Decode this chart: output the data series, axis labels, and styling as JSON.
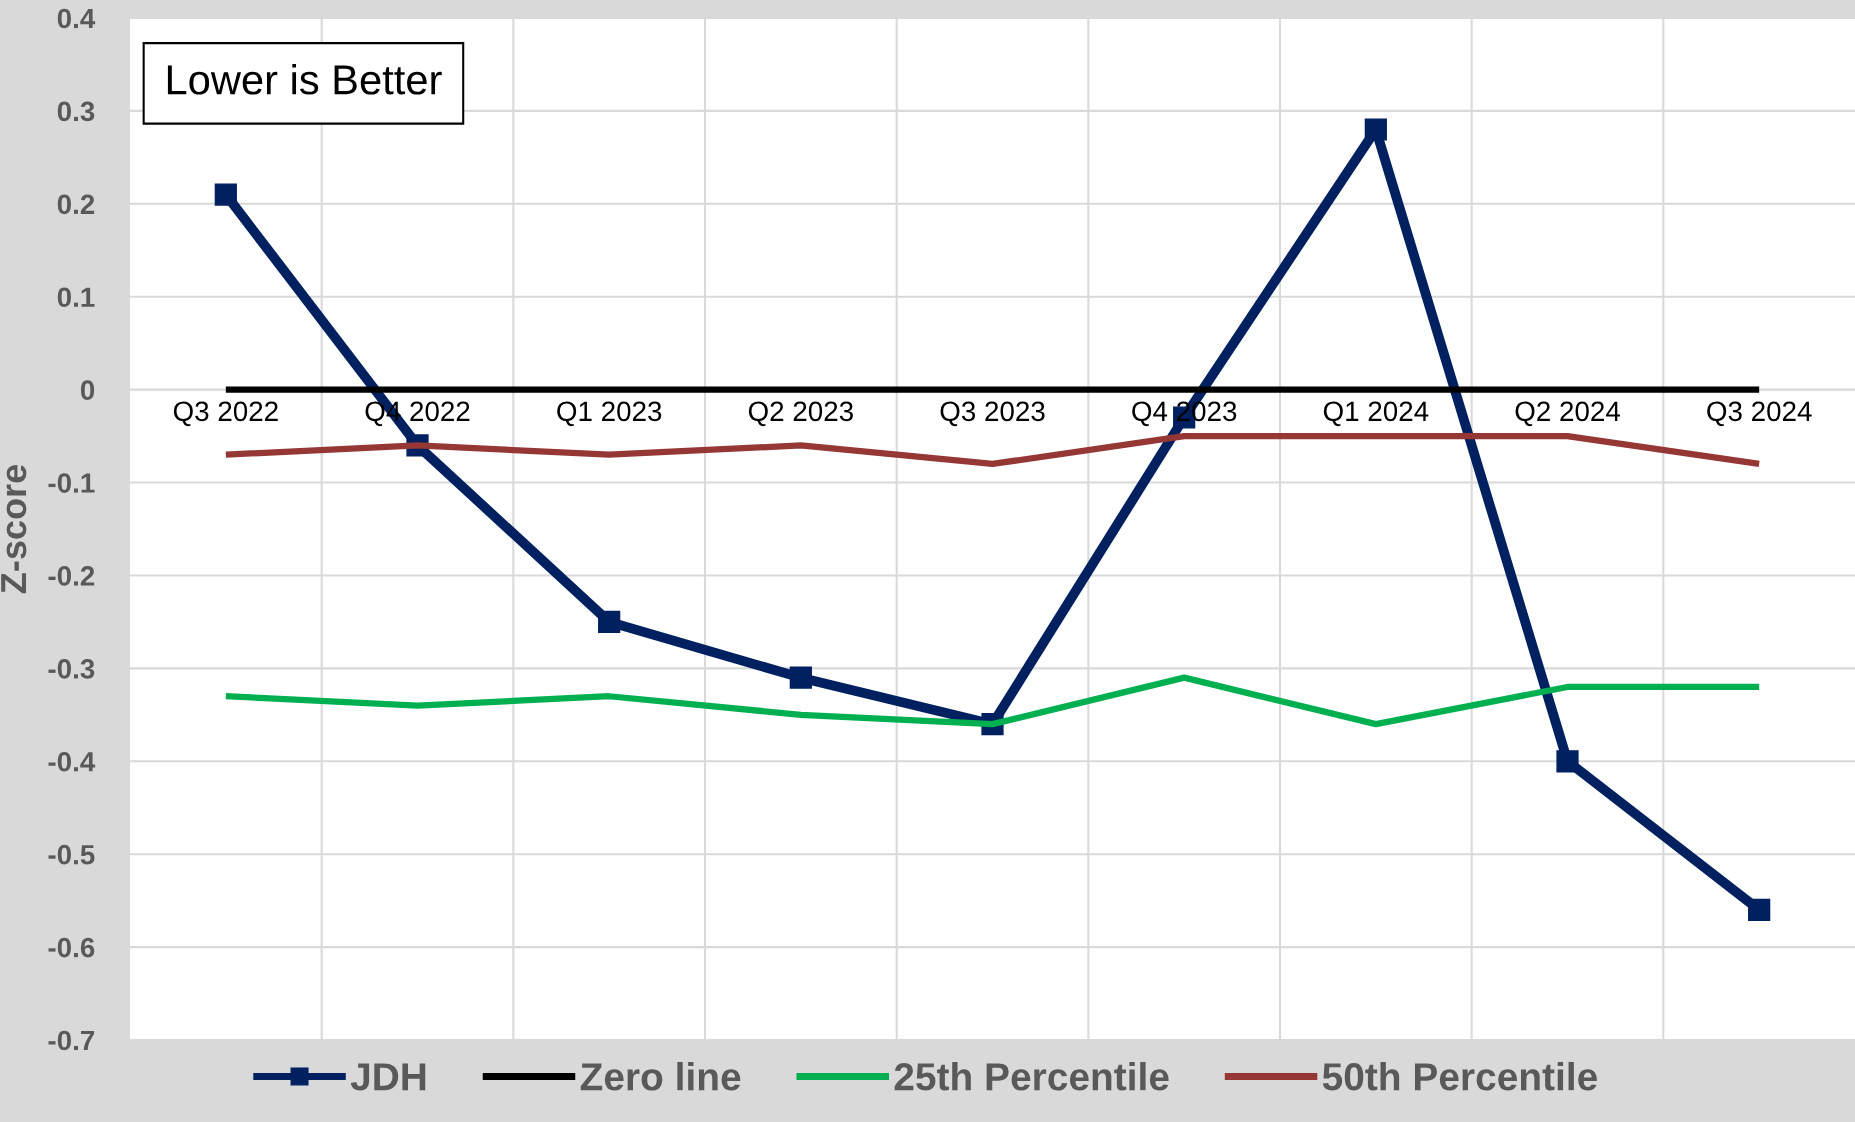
{
  "chart_data": {
    "type": "line",
    "ylabel": "Z-score",
    "categories": [
      "Q3 2022",
      "Q4 2022",
      "Q1 2023",
      "Q2 2023",
      "Q3 2023",
      "Q4 2023",
      "Q1 2024",
      "Q2 2024",
      "Q3 2024"
    ],
    "series": [
      {
        "name": "JDH",
        "color": "#002060",
        "marker": "square",
        "values": [
          0.21,
          -0.06,
          -0.25,
          -0.31,
          -0.36,
          -0.03,
          0.28,
          -0.4,
          -0.56
        ]
      },
      {
        "name": "Zero line",
        "color": "#000000",
        "marker": "none",
        "values": [
          0,
          0,
          0,
          0,
          0,
          0,
          0,
          0,
          0
        ]
      },
      {
        "name": "25th Percentile",
        "color": "#00b050",
        "marker": "none",
        "values": [
          -0.33,
          -0.34,
          -0.33,
          -0.35,
          -0.36,
          -0.31,
          -0.36,
          -0.32,
          -0.32
        ]
      },
      {
        "name": "50th Percentile",
        "color": "#953735",
        "marker": "none",
        "values": [
          -0.07,
          -0.06,
          -0.07,
          -0.06,
          -0.08,
          -0.05,
          -0.05,
          -0.05,
          -0.08
        ]
      }
    ],
    "ylim": [
      -0.7,
      0.4
    ],
    "yticks": [
      -0.7,
      -0.6,
      -0.5,
      -0.4,
      -0.3,
      -0.2,
      -0.1,
      0,
      0.1,
      0.2,
      0.3,
      0.4
    ],
    "grid": true,
    "legend": "bottom",
    "line_style": "solid",
    "annotations": [
      "Lower is Better"
    ]
  }
}
